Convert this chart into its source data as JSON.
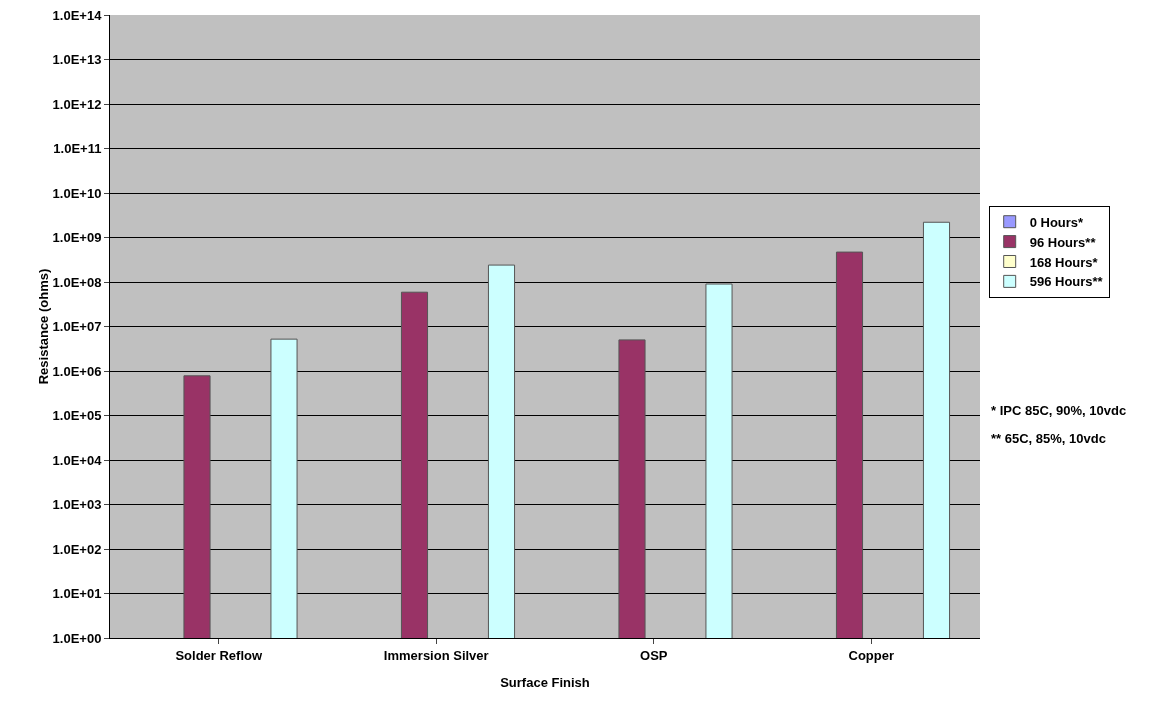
{
  "chart_data": {
    "type": "bar",
    "xlabel": "Surface Finish",
    "ylabel": "Resistance (ohms)",
    "categories": [
      "Solder Reflow",
      "Immersion Silver",
      "OSP",
      "Copper"
    ],
    "series": [
      {
        "name": "0 Hours*",
        "color": "#9999ff",
        "values": [
          null,
          null,
          null,
          null
        ]
      },
      {
        "name": "96 Hours**",
        "color": "#993366",
        "values": [
          780000,
          59000000,
          5000000,
          470000000
        ]
      },
      {
        "name": "168 Hours*",
        "color": "#ffffcc",
        "values": [
          null,
          null,
          null,
          null
        ]
      },
      {
        "name": "596 Hours**",
        "color": "#ccffff",
        "values": [
          5200000,
          240000000,
          90000000,
          2200000000
        ]
      }
    ],
    "log": "y",
    "ylim": [
      1,
      100000000000000
    ],
    "yticks": [
      {
        "value": 1,
        "label": "1.0E+00"
      },
      {
        "value": 10,
        "label": "1.0E+01"
      },
      {
        "value": 100,
        "label": "1.0E+02"
      },
      {
        "value": 1000,
        "label": "1.0E+03"
      },
      {
        "value": 10000,
        "label": "1.0E+04"
      },
      {
        "value": 100000,
        "label": "1.0E+05"
      },
      {
        "value": 1000000,
        "label": "1.0E+06"
      },
      {
        "value": 10000000,
        "label": "1.0E+07"
      },
      {
        "value": 100000000,
        "label": "1.0E+08"
      },
      {
        "value": 1000000000,
        "label": "1.0E+09"
      },
      {
        "value": 10000000000,
        "label": "1.0E+10"
      },
      {
        "value": 100000000000,
        "label": "1.0E+11"
      },
      {
        "value": 1000000000000,
        "label": "1.0E+12"
      },
      {
        "value": 10000000000000,
        "label": "1.0E+13"
      },
      {
        "value": 100000000000000,
        "label": "1.0E+14"
      }
    ],
    "grid": "y",
    "legend": "right",
    "annotations": [
      "* IPC 85C, 90%, 10vdc",
      "** 65C, 85%, 10vdc"
    ]
  }
}
